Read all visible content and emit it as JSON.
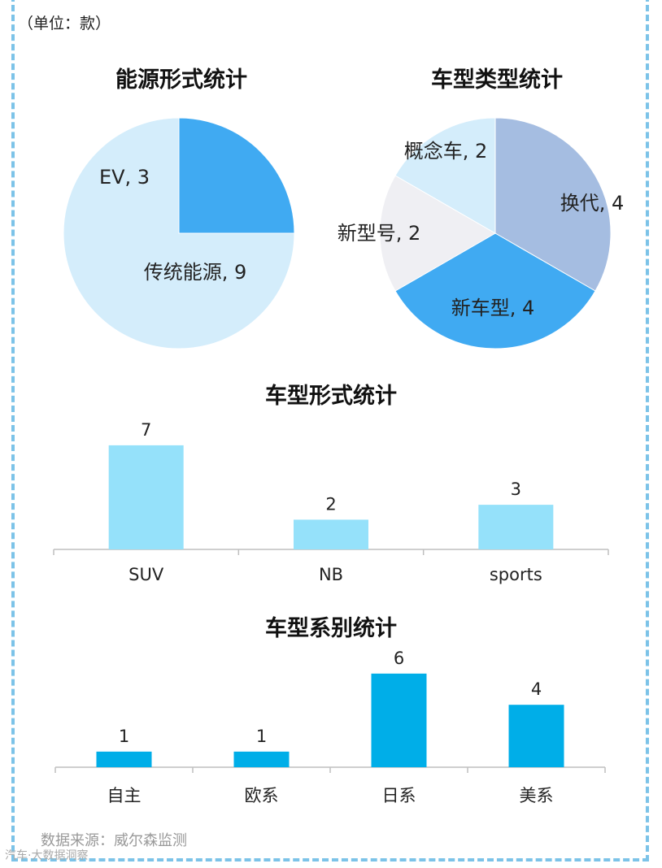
{
  "unit_label": "（单位：款）",
  "source_label": "数据来源：威尔森监测",
  "watermark": "汽车·大数据洞察",
  "chart_data": [
    {
      "type": "pie",
      "title": "能源形式统计",
      "slices": [
        {
          "label": "EV",
          "value": 3,
          "color": "#40aaf2"
        },
        {
          "label": "传统能源",
          "value": 9,
          "color": "#d4edfb"
        }
      ]
    },
    {
      "type": "pie",
      "title": "车型类型统计",
      "slices": [
        {
          "label": "换代",
          "value": 4,
          "color": "#a5bde1"
        },
        {
          "label": "新车型",
          "value": 4,
          "color": "#40aaf2"
        },
        {
          "label": "新型号",
          "value": 2,
          "color": "#efeff3"
        },
        {
          "label": "概念车",
          "value": 2,
          "color": "#d4edfb"
        }
      ]
    },
    {
      "type": "bar",
      "title": "车型形式统计",
      "categories": [
        "SUV",
        "NB",
        "sports"
      ],
      "values": [
        7,
        2,
        3
      ],
      "color": "#95e1fa"
    },
    {
      "type": "bar",
      "title": "车型系别统计",
      "categories": [
        "自主",
        "欧系",
        "日系",
        "美系"
      ],
      "values": [
        1,
        1,
        6,
        4
      ],
      "color": "#00aee8"
    }
  ]
}
